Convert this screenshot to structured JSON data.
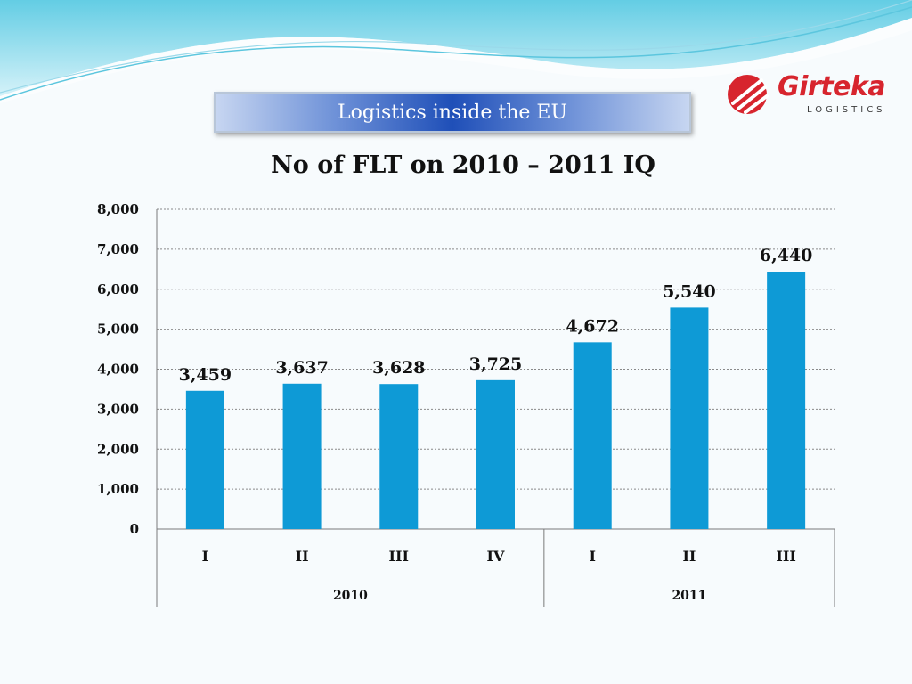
{
  "slide": {
    "banner_text": "Logistics inside the EU",
    "logo": {
      "brand": "Girteka",
      "subtitle": "LOGISTICS",
      "brand_color": "#d7252e"
    },
    "colors": {
      "bar": "#0e9ad6",
      "wave": "#6fd0e6"
    }
  },
  "chart_data": {
    "type": "bar",
    "title": "No of FLT on 2010 – 2011 IQ",
    "categories": [
      "I",
      "II",
      "III",
      "IV",
      "I",
      "II",
      "III"
    ],
    "groups": [
      {
        "label": "2010",
        "count": 4
      },
      {
        "label": "2011",
        "count": 3
      }
    ],
    "values": [
      3459,
      3637,
      3628,
      3725,
      4672,
      5540,
      6440
    ],
    "value_labels": [
      "3,459",
      "3,637",
      "3,628",
      "3,725",
      "4,672",
      "5,540",
      "6,440"
    ],
    "ylim": [
      0,
      8000
    ],
    "yticks": [
      0,
      1000,
      2000,
      3000,
      4000,
      5000,
      6000,
      7000,
      8000
    ],
    "ytick_labels": [
      "0",
      "1,000",
      "2,000",
      "3,000",
      "4,000",
      "5,000",
      "6,000",
      "7,000",
      "8,000"
    ],
    "grid": true,
    "legend": "none",
    "xlabel": "",
    "ylabel": ""
  }
}
